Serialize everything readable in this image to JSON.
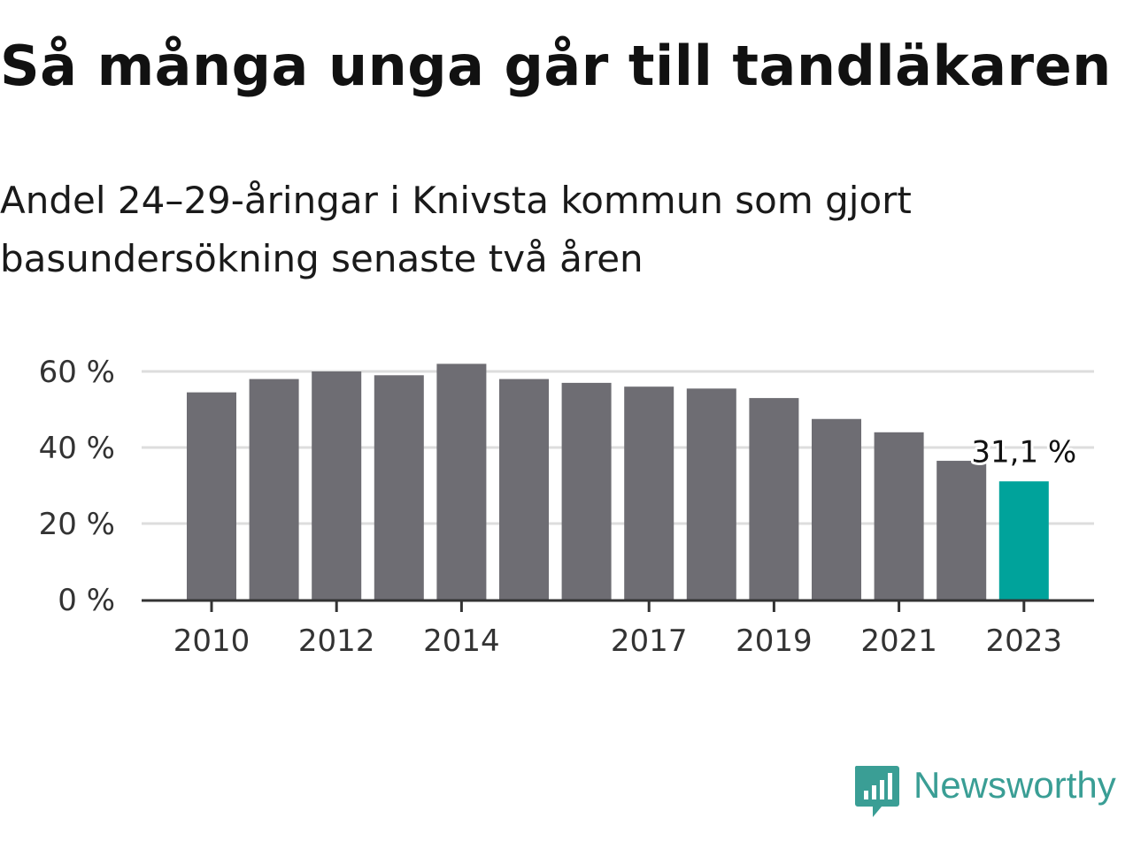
{
  "title": "Så många unga går till tandläkaren",
  "subtitle": "Andel 24–29-åringar i Knivsta kommun som gjort basundersökning senaste två åren",
  "brand": {
    "name": "Newsworthy",
    "color": "#3a9e95"
  },
  "colors": {
    "bar": "#6e6d73",
    "highlight": "#00a39b",
    "grid": "#dddddd",
    "axis": "#333333"
  },
  "chart_data": {
    "type": "bar",
    "categories": [
      "2010",
      "2011",
      "2012",
      "2013",
      "2014",
      "2015",
      "2016",
      "2017",
      "2018",
      "2019",
      "2020",
      "2021",
      "2022",
      "2023"
    ],
    "values": [
      54.5,
      58,
      60,
      59,
      62,
      58,
      57,
      56,
      55.5,
      53,
      47.5,
      44,
      36.5,
      31.1
    ],
    "highlight_index": 13,
    "ylim": [
      0,
      60
    ],
    "yticks": [
      0,
      20,
      40,
      60
    ],
    "ytick_labels": [
      "0 %",
      "20 %",
      "40 %",
      "60 %"
    ],
    "xtick_labels": [
      "2010",
      "2012",
      "2014",
      "2017",
      "2019",
      "2021",
      "2023"
    ],
    "annotations": [
      {
        "category": "2023",
        "text": "31,1 %"
      }
    ],
    "xlabel": "",
    "ylabel": "",
    "grid": true
  }
}
